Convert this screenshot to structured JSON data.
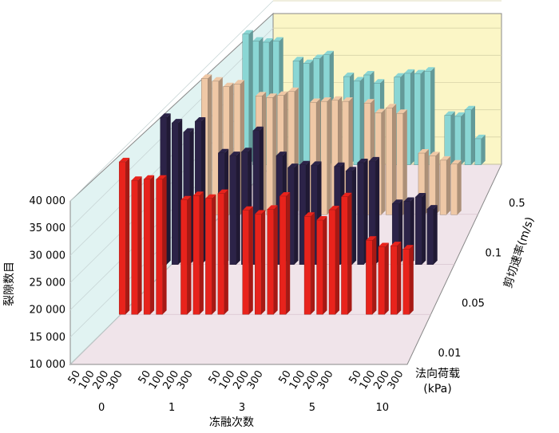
{
  "chart_data": {
    "type": "bar3d",
    "ylabel": "裂隙数目",
    "xlabel": "冻融次数",
    "zlabel": "剪切速率(m/s)",
    "load_label": "法向荷载",
    "load_unit": "(kPa)",
    "ylim": [
      10000,
      40000
    ],
    "yticks": [
      "10 000",
      "15 000",
      "20 000",
      "25 000",
      "30 000",
      "35 000",
      "40 000"
    ],
    "ytick_values": [
      10000,
      15000,
      20000,
      25000,
      30000,
      35000,
      40000
    ],
    "freeze_thaw_cycles": [
      "0",
      "1",
      "3",
      "5",
      "10"
    ],
    "normal_loads": [
      "50",
      "100",
      "200",
      "300"
    ],
    "shear_rates": [
      "0.01",
      "0.05",
      "0.1",
      "0.5"
    ],
    "series": [
      {
        "name": "0.01",
        "color": "#e8231c",
        "values": [
          [
            38000,
            34600,
            34800,
            34800
          ],
          [
            31000,
            31800,
            31300,
            32200
          ],
          [
            29100,
            28400,
            29300,
            31700
          ],
          [
            28000,
            27300,
            29200,
            31600
          ],
          [
            23600,
            22400,
            22600,
            22000
          ]
        ]
      },
      {
        "name": "0.05",
        "color": "#2c2348",
        "values": [
          [
            37000,
            36000,
            34300,
            36300
          ],
          [
            30500,
            30000,
            30700,
            34600
          ],
          [
            30000,
            27800,
            28300,
            28200
          ],
          [
            28000,
            27200,
            28700,
            29000
          ],
          [
            21200,
            21600,
            22400,
            20200
          ]
        ]
      },
      {
        "name": "0.1",
        "color": "#efc8a6",
        "values": [
          [
            35000,
            34500,
            33500,
            34000
          ],
          [
            31800,
            31500,
            31900,
            32600
          ],
          [
            30600,
            30800,
            31000,
            30800
          ],
          [
            30500,
            28700,
            29600,
            28600
          ],
          [
            21300,
            20800,
            20000,
            19300
          ]
        ]
      },
      {
        "name": "0.5",
        "color": "#8ad6d4",
        "values": [
          [
            34000,
            32700,
            32500,
            32700
          ],
          [
            29100,
            28600,
            29500,
            30200
          ],
          [
            26200,
            25400,
            26500,
            25000
          ],
          [
            26100,
            26800,
            26700,
            27200
          ],
          [
            19100,
            18900,
            20100,
            14800
          ]
        ]
      }
    ]
  }
}
